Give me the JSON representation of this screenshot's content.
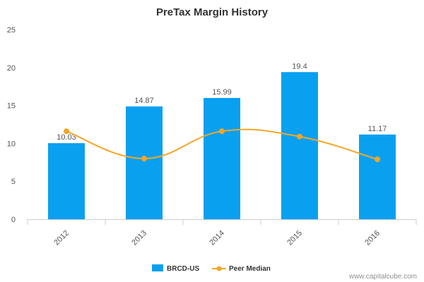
{
  "chart_data": {
    "type": "bar",
    "title": "PreTax Margin History",
    "categories": [
      "2012",
      "2013",
      "2014",
      "2015",
      "2016"
    ],
    "series": [
      {
        "name": "BRCD-US",
        "type": "bar",
        "values": [
          10.03,
          14.87,
          15.99,
          19.4,
          11.17
        ],
        "color": "#0aa0f0"
      },
      {
        "name": "Peer Median",
        "type": "line",
        "values": [
          11.6,
          8.0,
          11.6,
          10.9,
          7.9
        ],
        "color": "#f5a623"
      }
    ],
    "data_labels": [
      "10.03",
      "14.87",
      "15.99",
      "19.4",
      "11.17"
    ],
    "ylim": [
      0,
      25
    ],
    "yticks": [
      0,
      5,
      10,
      15,
      20,
      25
    ],
    "grid": false,
    "legend_position": "bottom"
  },
  "credit": "www.capitalcube.com"
}
